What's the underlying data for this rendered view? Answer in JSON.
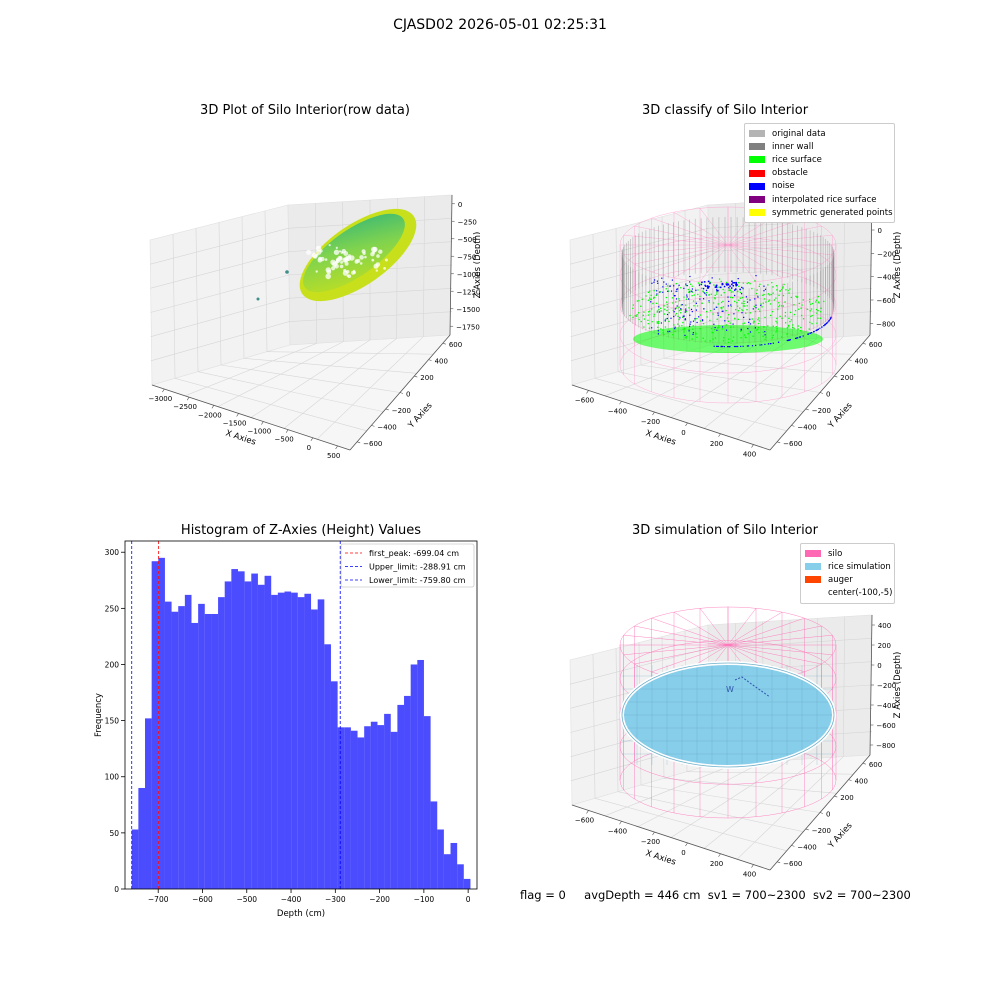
{
  "suptitle": "CJASD02 2026-05-01 02:25:31",
  "panels": {
    "raw": {
      "title": "3D Plot of Silo Interior(row data)",
      "xlabel": "X Axies",
      "ylabel": "Y Axies",
      "zlabel": "Z Axies (Depth)",
      "xticks": [
        "−3000",
        "−2500",
        "−2000",
        "−1500",
        "−1000",
        "−500",
        "0",
        "500"
      ],
      "yticks": [
        "−600",
        "−400",
        "−200",
        "0",
        "200",
        "400",
        "600"
      ],
      "zticks": [
        "0",
        "−250",
        "−500",
        "−750",
        "−1000",
        "−1250",
        "−1500",
        "−1750"
      ],
      "colors": {
        "surface_light": "#c8e01c",
        "surface_mid": "#7fd34e",
        "surface_dark": "#2fb47c",
        "outlier": "#3f8f8a"
      }
    },
    "classify": {
      "title": "3D classify of Silo Interior",
      "xlabel": "X Axies",
      "ylabel": "Y Axies",
      "zlabel": "Z Axies (Depth)",
      "xticks": [
        "−600",
        "−400",
        "−200",
        "0",
        "200",
        "400"
      ],
      "yticks": [
        "−600",
        "−400",
        "−200",
        "0",
        "200",
        "400",
        "600"
      ],
      "zticks": [
        "200",
        "0",
        "−200",
        "−400",
        "−600",
        "−800"
      ],
      "legend": [
        {
          "label": "original data",
          "color": "#b4b4b4"
        },
        {
          "label": "inner wall",
          "color": "#808080"
        },
        {
          "label": "rice surface",
          "color": "#00ff00"
        },
        {
          "label": "obstacle",
          "color": "#ff0000"
        },
        {
          "label": "noise",
          "color": "#0000ff"
        },
        {
          "label": "interpolated rice surface",
          "color": "#800080"
        },
        {
          "label": "symmetric generated points",
          "color": "#ffff00"
        }
      ]
    },
    "simulation": {
      "title": "3D simulation of Silo Interior",
      "xlabel": "X Axies",
      "ylabel": "Y Axies",
      "zlabel": "Z Axies (Depth)",
      "xticks": [
        "−600",
        "−400",
        "−200",
        "0",
        "200",
        "400"
      ],
      "yticks": [
        "−600",
        "−400",
        "−200",
        "0",
        "200",
        "400",
        "600"
      ],
      "zticks": [
        "400",
        "200",
        "0",
        "−200",
        "−400",
        "−600",
        "−800"
      ],
      "legend": [
        {
          "label": "silo",
          "color": "#ff69b4"
        },
        {
          "label": "rice simulation",
          "color": "#87ceeb"
        },
        {
          "label": "auger",
          "color": "#ff4500"
        },
        {
          "label": "center(-100,-5)",
          "color": "#ffffff"
        }
      ]
    }
  },
  "chart_data": {
    "type": "bar",
    "title": "Histogram of Z-Axies (Height) Values",
    "xlabel": "Depth (cm)",
    "ylabel": "Frequency",
    "xlim": [
      -775,
      20
    ],
    "ylim": [
      0,
      310
    ],
    "xticks": [
      -700,
      -600,
      -500,
      -400,
      -300,
      -200,
      -100,
      0
    ],
    "yticks": [
      0,
      50,
      100,
      150,
      200,
      250,
      300
    ],
    "bin_start": -759.8,
    "bin_width": 15.0,
    "values": [
      53,
      90,
      152,
      292,
      295,
      256,
      247,
      252,
      262,
      237,
      254,
      245,
      245,
      260,
      274,
      285,
      283,
      274,
      281,
      271,
      279,
      262,
      264,
      265,
      264,
      260,
      263,
      249,
      258,
      218,
      185,
      144,
      144,
      141,
      135,
      145,
      149,
      146,
      156,
      140,
      164,
      172,
      200,
      204,
      154,
      78,
      53,
      31,
      41,
      22,
      9
    ],
    "bar_color": "#0000ff",
    "bar_alpha": 0.7,
    "vlines": [
      {
        "x": -699.04,
        "color": "#ff0000",
        "label": "first_peak: -699.04 cm"
      },
      {
        "x": -288.91,
        "color": "#0000ff",
        "label": "Upper_limit: -288.91 cm"
      },
      {
        "x": -759.8,
        "color": "#0000ff",
        "label": "Lower_limit: -759.80 cm"
      }
    ],
    "legend_position": "upper right"
  },
  "footer": {
    "flag": "flag = 0",
    "avg_depth": "avgDepth = 446 cm",
    "sv1": "sv1 = 700~2300",
    "sv2": "sv2 = 700~2300"
  }
}
